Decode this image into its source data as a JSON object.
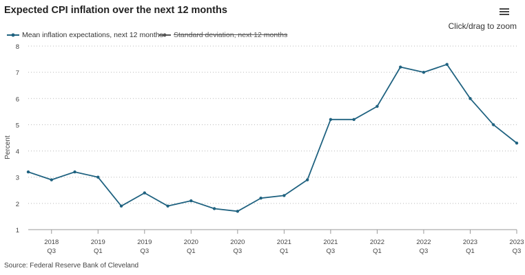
{
  "header": {
    "title": "Expected CPI inflation over the next 12 months",
    "zoom_hint": "Click/drag to zoom",
    "menu_icon": "hamburger-menu-icon"
  },
  "footer": {
    "source": "Source: Federal Reserve Bank of Cleveland"
  },
  "colors": {
    "series": "#1f6280",
    "grid": "#b8b8b8",
    "axis": "#999999",
    "hidden_series": "#555555"
  },
  "chart_data": {
    "type": "line",
    "title": "Expected CPI inflation over the next 12 months",
    "xlabel": "",
    "ylabel": "Percent",
    "ylim": [
      1,
      8
    ],
    "yticks": [
      1,
      2,
      3,
      4,
      5,
      6,
      7,
      8
    ],
    "grid": true,
    "legend_position": "top-left",
    "x_tick_labels": [
      {
        "year": "2018",
        "quarter": "Q3"
      },
      {
        "year": "2019",
        "quarter": "Q1"
      },
      {
        "year": "2019",
        "quarter": "Q3"
      },
      {
        "year": "2020",
        "quarter": "Q1"
      },
      {
        "year": "2020",
        "quarter": "Q3"
      },
      {
        "year": "2021",
        "quarter": "Q1"
      },
      {
        "year": "2021",
        "quarter": "Q3"
      },
      {
        "year": "2022",
        "quarter": "Q1"
      },
      {
        "year": "2022",
        "quarter": "Q3"
      },
      {
        "year": "2023",
        "quarter": "Q1"
      },
      {
        "year": "2023",
        "quarter": "Q3"
      }
    ],
    "series": [
      {
        "name": "Mean inflation expectations, next 12 months",
        "visible": true,
        "x": [
          "2018Q2",
          "2018Q3",
          "2018Q4",
          "2019Q1",
          "2019Q2",
          "2019Q3",
          "2019Q4",
          "2020Q1",
          "2020Q2",
          "2020Q3",
          "2020Q4",
          "2021Q1",
          "2021Q2",
          "2021Q3",
          "2021Q4",
          "2022Q1",
          "2022Q2",
          "2022Q3",
          "2022Q4",
          "2023Q1",
          "2023Q2",
          "2023Q3"
        ],
        "values": [
          3.2,
          2.9,
          3.2,
          3.0,
          1.9,
          2.4,
          1.9,
          2.1,
          1.8,
          1.7,
          2.2,
          2.3,
          2.9,
          5.2,
          5.2,
          5.7,
          7.2,
          7.0,
          7.3,
          6.0,
          5.0,
          4.3
        ]
      },
      {
        "name": "Standard deviation, next 12 months",
        "visible": false,
        "x": [],
        "values": []
      }
    ]
  }
}
